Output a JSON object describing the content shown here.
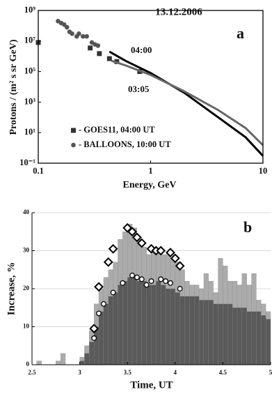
{
  "chart_data": [
    {
      "type": "scatter",
      "title": "13.12.2006",
      "panel_label": "a",
      "xlabel": "Energy, GeV",
      "ylabel": "Protons / (m² s sr GeV)",
      "xscale": "log",
      "yscale": "log",
      "xlim": [
        0.1,
        10
      ],
      "ylim": [
        0.1,
        1000000000
      ],
      "xticks": [
        0.1,
        1,
        10
      ],
      "yticks": [
        {
          "value": 0.1,
          "label": "10⁻¹"
        },
        {
          "value": 10,
          "label": "10¹"
        },
        {
          "value": 1000,
          "label": "10³"
        },
        {
          "value": 100000,
          "label": "10⁵"
        },
        {
          "value": 10000000,
          "label": "10⁷"
        },
        {
          "value": 1000000000,
          "label": "10⁹"
        }
      ],
      "annotations": [
        "04:00",
        "03:05"
      ],
      "series": [
        {
          "name": "- GOES11, 04:00 UT",
          "mode": "markers",
          "marker": "square",
          "color": "#333333",
          "x": [
            0.1,
            0.29,
            0.35,
            0.43,
            0.5,
            0.8
          ],
          "values": [
            8000000,
            3500000,
            1500000,
            700000,
            450000,
            100000
          ]
        },
        {
          "name": "- BALLOONS, 10:00 UT",
          "mode": "markers",
          "marker": "circle",
          "color": "#555555",
          "x": [
            0.15,
            0.16,
            0.17,
            0.18,
            0.19,
            0.2,
            0.22,
            0.23,
            0.25,
            0.27,
            0.3,
            0.32,
            0.34
          ],
          "values": [
            200000000,
            150000000,
            120000000,
            80000000,
            40000000,
            30000000,
            20000000,
            30000000,
            20000000,
            20000000,
            8000000,
            6000000,
            5000000
          ]
        },
        {
          "mode": "line",
          "color": "#000000",
          "x": [
            0.43,
            0.6,
            1,
            2,
            4,
            7,
            10
          ],
          "values": [
            2000000,
            500000,
            80000,
            4000,
            100,
            5,
            0.3
          ]
        },
        {
          "mode": "line",
          "color": "#666666",
          "x": [
            0.45,
            0.6,
            1,
            2,
            4,
            7,
            10
          ],
          "values": [
            500000,
            250000,
            60000,
            5000,
            300,
            20,
            1.5
          ]
        }
      ]
    },
    {
      "type": "histogram",
      "panel_label": "b",
      "xlabel": "Time, UT",
      "ylabel": "Increase, %",
      "xlim": [
        2.5,
        5
      ],
      "ylim": [
        0,
        40
      ],
      "xticks": [
        2.5,
        3,
        3.5,
        4,
        4.5,
        5
      ],
      "yticks": [
        0,
        10,
        20,
        30,
        40
      ],
      "grid": true,
      "bins": [
        2.5,
        2.55,
        2.6,
        2.65,
        2.7,
        2.75,
        2.8,
        2.85,
        2.9,
        2.95,
        3,
        3.05,
        3.1,
        3.15,
        3.2,
        3.25,
        3.3,
        3.35,
        3.4,
        3.45,
        3.5,
        3.55,
        3.6,
        3.65,
        3.7,
        3.75,
        3.8,
        3.85,
        3.9,
        3.95,
        4,
        4.05,
        4.1,
        4.15,
        4.2,
        4.25,
        4.3,
        4.35,
        4.4,
        4.45,
        4.5,
        4.55,
        4.6,
        4.65,
        4.7,
        4.75,
        4.8,
        4.85,
        4.9,
        4.95,
        5
      ],
      "series": [
        {
          "color": "#ababab",
          "values": [
            0,
            1,
            0,
            0,
            0,
            1,
            3,
            0,
            0,
            0,
            2,
            5,
            9,
            16,
            20,
            23,
            25,
            27,
            33,
            35,
            37,
            36,
            33,
            31,
            29,
            30,
            30,
            29,
            29,
            28,
            27,
            25,
            22,
            21,
            21,
            20,
            24,
            22,
            19,
            28,
            26,
            22,
            22,
            21,
            24,
            21,
            24,
            17,
            16,
            14
          ]
        },
        {
          "color": "#5a5a5a",
          "values": [
            0,
            0,
            0,
            0,
            0,
            0,
            0,
            0,
            0,
            0,
            1,
            3,
            6,
            10,
            14,
            16,
            18,
            19,
            21,
            22,
            23,
            23,
            22,
            22,
            21,
            21,
            22,
            21,
            20,
            20,
            19,
            18,
            18,
            18,
            18,
            17,
            17,
            17,
            16,
            16,
            16,
            16,
            15,
            15,
            15,
            14,
            14,
            14,
            13,
            12
          ]
        }
      ],
      "points": [
        {
          "marker": "diamond",
          "x": [
            3.15,
            3.2,
            3.3,
            3.35,
            3.5,
            3.55,
            3.6,
            3.65,
            3.75,
            3.8,
            3.85,
            3.95,
            4.0,
            4.05
          ],
          "values": [
            9.5,
            20.5,
            27,
            30.5,
            36,
            35,
            33.5,
            32,
            30.5,
            30,
            30,
            29.5,
            28,
            26
          ]
        },
        {
          "marker": "circle",
          "x": [
            3.15,
            3.2,
            3.25,
            3.35,
            3.45,
            3.55,
            3.6,
            3.65,
            3.7,
            3.75,
            3.85,
            3.9,
            3.95,
            4.05
          ],
          "values": [
            7,
            13.5,
            16,
            19,
            21.5,
            23.5,
            23,
            22.5,
            21,
            22,
            22.5,
            22,
            21.5,
            20
          ]
        }
      ]
    }
  ]
}
